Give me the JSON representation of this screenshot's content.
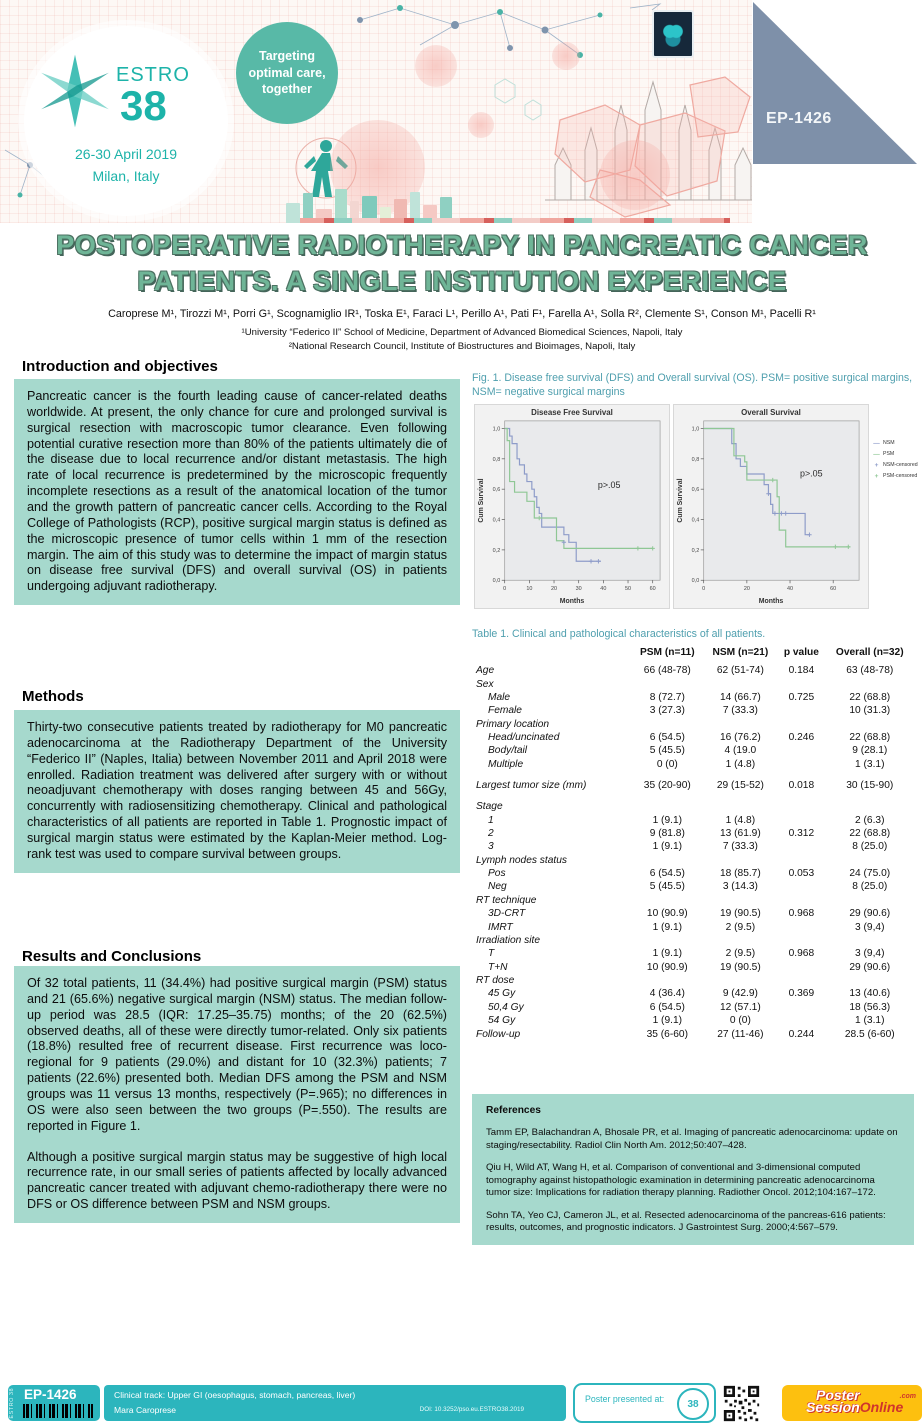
{
  "header": {
    "event_name": "ESTRO",
    "event_number": "38",
    "event_dates": "26-30 April 2019",
    "event_location": "Milan, Italy",
    "tagline": "Targeting optimal care, together",
    "poster_id": "EP-1426",
    "colors": {
      "teal": "#1db3a9",
      "circle_teal": "#58b9a7",
      "triangle": "#7e90a9",
      "box_teal": "#a6d9cd",
      "footer_teal": "#2cb5bd"
    }
  },
  "title": "POSTOPERATIVE RADIOTHERAPY IN PANCREATIC CANCER PATIENTS. A SINGLE INSTITUTION EXPERIENCE",
  "authors": "Caroprese M¹, Tirozzi M¹, Porri G¹, Scognamiglio IR¹, Toska E¹, Faraci L¹, Perillo A¹, Pati F¹, Farella A¹, Solla R², Clemente S¹, Conson M¹, Pacelli R¹",
  "affiliations": [
    "¹University “Federico II” School of Medicine, Department of Advanced Biomedical Sciences, Napoli, Italy",
    "²National Research Council, Institute of Biostructures and Bioimages, Napoli, Italy"
  ],
  "sections": {
    "introduction": {
      "heading": "Introduction and objectives",
      "body": "Pancreatic cancer is the fourth leading cause of cancer-related deaths worldwide. At present, the only chance for cure and prolonged survival is surgical resection with macroscopic tumor clearance. Even following potential curative resection more than 80% of the patients ultimately die of the disease due to local recurrence and/or distant metastasis. The high rate of local recurrence is predetermined by the microscopic frequently incomplete resections as a result of the anatomical location of the tumor and the growth pattern of pancreatic cancer cells. According to the Royal College of Pathologists (RCP), positive surgical margin status is defined as the microscopic presence of tumor cells within 1 mm of the resection margin. The aim of this study was to determine the impact of margin status on disease free survival (DFS) and overall survival (OS) in patients undergoing adjuvant radiotherapy."
    },
    "methods": {
      "heading": "Methods",
      "body": "Thirty-two consecutive patients treated by radiotherapy for M0 pancreatic adenocarcinoma at the Radiotherapy Department of the University “Federico II” (Naples, Italia) between November 2011 and April 2018 were enrolled. Radiation treatment was delivered after surgery with or without neoadjuvant chemotherapy with doses ranging between 45 and 56Gy, concurrently with radiosensitizing chemotherapy. Clinical and pathological characteristics of all patients are reported in Table 1. Prognostic impact of surgical margin status were estimated by the Kaplan-Meier method. Log-rank test was used to compare survival between groups."
    },
    "results": {
      "heading": "Results and Conclusions",
      "body1": "Of 32 total patients, 11 (34.4%) had positive surgical margin (PSM) status and 21 (65.6%) negative surgical margin (NSM) status. The median follow-up period was 28.5 (IQR: 17.25–35.75) months; of the 20 (62.5%) observed deaths, all of these were directly tumor-related. Only six patients (18.8%) resulted free of recurrent disease. First recurrence was loco-regional for 9 patients (29.0%) and distant for 10 (32.3%) patients; 7 patients (22.6%) presented both. Median DFS among the PSM and NSM groups was 11 versus 13 months, respectively (P=.965); no differences in OS were also seen between the two groups (P=.550). The results are reported in Figure 1.",
      "body2": "Although a positive surgical margin status may be suggestive of high local recurrence rate, in our small series of patients affected by locally advanced pancreatic cancer treated with adjuvant chemo-radiotherapy there were no DFS or OS difference between PSM and NSM groups."
    }
  },
  "figure": {
    "caption": "Fig. 1. Disease free survival (DFS) and Overall survival (OS). PSM= positive surgical margins, NSM= negative surgical margins"
  },
  "chart_data": [
    {
      "type": "line",
      "title": "Disease Free Survival",
      "xlabel": "Months",
      "ylabel": "Cum Survival",
      "xlim": [
        0,
        63
      ],
      "xticks": [
        0,
        10,
        20,
        30,
        40,
        50,
        60
      ],
      "ylim": [
        0,
        1.05
      ],
      "yticks": [
        0.0,
        0.2,
        0.4,
        0.6,
        0.8,
        1.0
      ],
      "decimal_comma": true,
      "grid": false,
      "annotation": {
        "text": "p>.05",
        "fx": 0.6,
        "fy": 0.42
      },
      "series": [
        {
          "name": "NSM",
          "color": "#8e9cc9",
          "points": [
            [
              0,
              1
            ],
            [
              2,
              1
            ],
            [
              2,
              0.95
            ],
            [
              3,
              0.95
            ],
            [
              3,
              0.9
            ],
            [
              5,
              0.9
            ],
            [
              5,
              0.8
            ],
            [
              6,
              0.8
            ],
            [
              6,
              0.76
            ],
            [
              8,
              0.76
            ],
            [
              8,
              0.7
            ],
            [
              9,
              0.7
            ],
            [
              9,
              0.65
            ],
            [
              11,
              0.65
            ],
            [
              11,
              0.6
            ],
            [
              12,
              0.6
            ],
            [
              12,
              0.55
            ],
            [
              13,
              0.55
            ],
            [
              13,
              0.48
            ],
            [
              14,
              0.48
            ],
            [
              14,
              0.44
            ],
            [
              15,
              0.44
            ],
            [
              15,
              0.35
            ],
            [
              24,
              0.35
            ],
            [
              24,
              0.3
            ],
            [
              26,
              0.3
            ],
            [
              26,
              0.25
            ],
            [
              29,
              0.25
            ],
            [
              29,
              0.125
            ],
            [
              39,
              0.125
            ]
          ]
        },
        {
          "name": "PSM",
          "color": "#8fc795",
          "points": [
            [
              0,
              1
            ],
            [
              1,
              1
            ],
            [
              1,
              0.92
            ],
            [
              2,
              0.92
            ],
            [
              2,
              0.65
            ],
            [
              4,
              0.65
            ],
            [
              4,
              0.58
            ],
            [
              9,
              0.58
            ],
            [
              9,
              0.52
            ],
            [
              12,
              0.52
            ],
            [
              12,
              0.41
            ],
            [
              21,
              0.41
            ],
            [
              21,
              0.26
            ],
            [
              24,
              0.26
            ],
            [
              24,
              0.21
            ],
            [
              60,
              0.21
            ]
          ]
        }
      ],
      "censored": [
        {
          "name": "NSM-censored",
          "color": "#8e9cc9",
          "points": [
            [
              24,
              0.25
            ],
            [
              35,
              0.125
            ],
            [
              38,
              0.125
            ]
          ]
        },
        {
          "name": "PSM-censored",
          "color": "#8fc795",
          "points": [
            [
              14,
              0.41
            ],
            [
              54,
              0.21
            ],
            [
              60,
              0.21
            ]
          ]
        }
      ]
    },
    {
      "type": "line",
      "title": "Overall Survival",
      "xlabel": "Months",
      "ylabel": "Cum Survival",
      "xlim": [
        0,
        72
      ],
      "xticks": [
        0,
        20,
        40,
        60
      ],
      "ylim": [
        0,
        1.05
      ],
      "yticks": [
        0.0,
        0.2,
        0.4,
        0.6,
        0.8,
        1.0
      ],
      "decimal_comma": true,
      "grid": false,
      "annotation": {
        "text": "p>.05",
        "fx": 0.62,
        "fy": 0.35
      },
      "legend": [
        "NSM",
        "PSM",
        "NSM-censored",
        "PSM-censored"
      ],
      "series": [
        {
          "name": "NSM",
          "color": "#8e9cc9",
          "points": [
            [
              0,
              1
            ],
            [
              13,
              1
            ],
            [
              13,
              0.9
            ],
            [
              15,
              0.9
            ],
            [
              15,
              0.8
            ],
            [
              17,
              0.8
            ],
            [
              17,
              0.75
            ],
            [
              20,
              0.75
            ],
            [
              20,
              0.7
            ],
            [
              28,
              0.7
            ],
            [
              28,
              0.63
            ],
            [
              30,
              0.63
            ],
            [
              30,
              0.57
            ],
            [
              31,
              0.57
            ],
            [
              31,
              0.5
            ],
            [
              32,
              0.5
            ],
            [
              32,
              0.44
            ],
            [
              47,
              0.44
            ],
            [
              47,
              0.3
            ],
            [
              49,
              0.3
            ]
          ]
        },
        {
          "name": "PSM",
          "color": "#8fc795",
          "points": [
            [
              0,
              1
            ],
            [
              14,
              1
            ],
            [
              14,
              0.82
            ],
            [
              19,
              0.82
            ],
            [
              19,
              0.78
            ],
            [
              20,
              0.78
            ],
            [
              20,
              0.66
            ],
            [
              34,
              0.66
            ],
            [
              34,
              0.55
            ],
            [
              35,
              0.55
            ],
            [
              35,
              0.33
            ],
            [
              38,
              0.33
            ],
            [
              38,
              0.22
            ],
            [
              68,
              0.22
            ]
          ]
        }
      ],
      "censored": [
        {
          "name": "NSM-censored",
          "color": "#8e9cc9",
          "points": [
            [
              30,
              0.57
            ],
            [
              33,
              0.44
            ],
            [
              36,
              0.44
            ],
            [
              38,
              0.44
            ],
            [
              49,
              0.3
            ]
          ]
        },
        {
          "name": "PSM-censored",
          "color": "#8fc795",
          "points": [
            [
              32,
              0.66
            ],
            [
              61,
              0.22
            ],
            [
              67,
              0.22
            ]
          ]
        }
      ]
    }
  ],
  "table": {
    "caption": "Table 1. Clinical and pathological characteristics of all patients.",
    "headers": [
      "",
      "PSM (n=11)",
      "NSM (n=21)",
      "p value",
      "Overall (n=32)"
    ],
    "rows": [
      {
        "label": "Age",
        "cells": [
          "66 (48-78)",
          "62 (51-74)",
          "0.184",
          "63 (48-78)"
        ]
      },
      {
        "label": "Sex",
        "group": true
      },
      {
        "label": "Male",
        "indent": true,
        "cells": [
          "8 (72.7)",
          "14 (66.7)",
          "0.725",
          "22 (68.8)"
        ]
      },
      {
        "label": "Female",
        "indent": true,
        "cells": [
          "3 (27.3)",
          "7 (33.3)",
          "",
          "10 (31.3)"
        ]
      },
      {
        "label": "Primary location",
        "group": true
      },
      {
        "label": "Head/uncinated",
        "indent": true,
        "cells": [
          "6 (54.5)",
          "16 (76.2)",
          "0.246",
          "22 (68.8)"
        ]
      },
      {
        "label": "Body/tail",
        "indent": true,
        "cells": [
          "5 (45.5)",
          "4 (19.0",
          "",
          "9 (28.1)"
        ]
      },
      {
        "label": "Multiple",
        "indent": true,
        "cells": [
          "0 (0)",
          "1 (4.8)",
          "",
          "1 (3.1)"
        ]
      },
      {
        "label": "Largest tumor size (mm)",
        "spacer": true,
        "cells": [
          "35 (20-90)",
          "29 (15-52)",
          "0.018",
          "30 (15-90)"
        ]
      },
      {
        "label": "Stage",
        "group": true,
        "spacer": true
      },
      {
        "label": "1",
        "indent": true,
        "cells": [
          "1 (9.1)",
          "1 (4.8)",
          "",
          "2 (6.3)"
        ]
      },
      {
        "label": "2",
        "indent": true,
        "cells": [
          "9 (81.8)",
          "13 (61.9)",
          "0.312",
          "22 (68.8)"
        ]
      },
      {
        "label": "3",
        "indent": true,
        "cells": [
          "1 (9.1)",
          "7 (33.3)",
          "",
          "8 (25.0)"
        ]
      },
      {
        "label": "Lymph nodes status",
        "group": true
      },
      {
        "label": "Pos",
        "indent": true,
        "cells": [
          "6 (54.5)",
          "18 (85.7)",
          "0.053",
          "24 (75.0)"
        ]
      },
      {
        "label": "Neg",
        "indent": true,
        "cells": [
          "5 (45.5)",
          "3 (14.3)",
          "",
          "8 (25.0)"
        ]
      },
      {
        "label": "RT technique",
        "group": true
      },
      {
        "label": "3D-CRT",
        "indent": true,
        "cells": [
          "10 (90.9)",
          "19 (90.5)",
          "0.968",
          "29 (90.6)"
        ]
      },
      {
        "label": "IMRT",
        "indent": true,
        "cells": [
          "1 (9.1)",
          "2 (9.5)",
          "",
          "3 (9,4)"
        ]
      },
      {
        "label": "Irradiation site",
        "group": true
      },
      {
        "label": "T",
        "indent": true,
        "cells": [
          "1 (9.1)",
          "2 (9.5)",
          "0.968",
          "3 (9,4)"
        ]
      },
      {
        "label": "T+N",
        "indent": true,
        "cells": [
          "10 (90.9)",
          "19 (90.5)",
          "",
          "29 (90.6)"
        ]
      },
      {
        "label": "RT dose",
        "group": true
      },
      {
        "label": "45 Gy",
        "indent": true,
        "cells": [
          "4 (36.4)",
          "9 (42.9)",
          "0.369",
          "13 (40.6)"
        ]
      },
      {
        "label": "50,4 Gy",
        "indent": true,
        "cells": [
          "6 (54.5)",
          "12 (57.1)",
          "",
          "18 (56.3)"
        ]
      },
      {
        "label": "54 Gy",
        "indent": true,
        "cells": [
          "1 (9.1)",
          "0 (0)",
          "",
          "1 (3.1)"
        ]
      },
      {
        "label": "Follow-up",
        "cells": [
          "35 (6-60)",
          "27 (11-46)",
          "0.244",
          "28.5 (6-60)"
        ]
      }
    ]
  },
  "references": {
    "heading": "References",
    "items": [
      "Tamm EP, Balachandran A, Bhosale PR, et al. Imaging of pancreatic adenocarcinoma: update on staging/resectability. Radiol Clin North Am. 2012;50:407–428.",
      "Qiu H, Wild AT, Wang H, et al. Comparison of conventional and 3-dimensional computed tomography against histopathologic examination in determining pancreatic adenocarcinoma tumor size: Implications for radiation therapy planning. Radiother Oncol. 2012;104:167–172.",
      "Sohn TA, Yeo CJ, Cameron JL, et al. Resected adenocarcinoma of the pancreas-616 patients: results, outcomes, and prognostic indicators. J Gastrointest Surg. 2000;4:567–579."
    ]
  },
  "footer": {
    "badge_vertical": "ESTRO 38",
    "poster_id": "EP-1426",
    "track": "Clinical track: Upper GI (oesophagus, stomach, pancreas, liver)",
    "presenter": "Mara Caroprese",
    "doi": "DOI: 10.3252/pso.eu.ESTRO38.2019",
    "presented_at": "Poster presented at:",
    "presented_logo": "38",
    "brand_line1": "Poster",
    "brand_line2_white": "Session",
    "brand_line2_red": "Online",
    "brand_tld": ".com"
  }
}
